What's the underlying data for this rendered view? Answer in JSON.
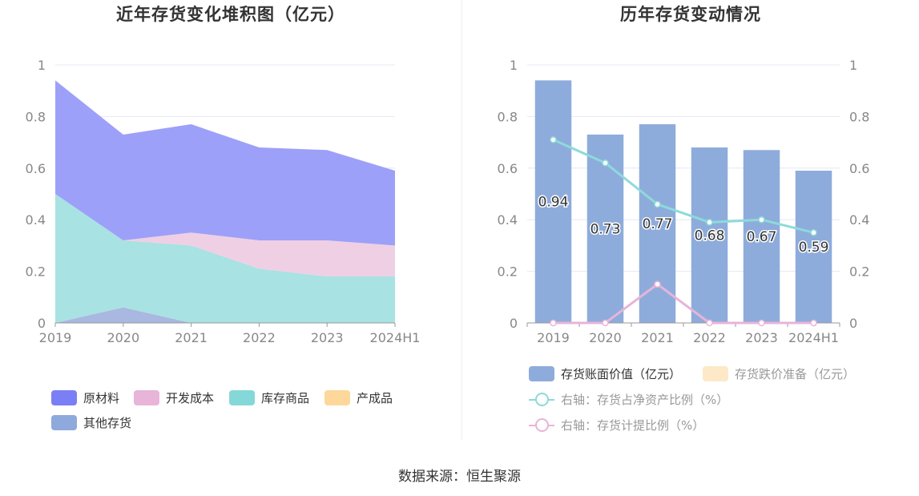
{
  "footer": {
    "source": "数据来源：恒生聚源"
  },
  "left_chart": {
    "title": "近年存货变化堆积图（亿元）",
    "legend": [
      {
        "label": "原材料",
        "color": "#7b7ff5"
      },
      {
        "label": "开发成本",
        "color": "#e8b4d8"
      },
      {
        "label": "库存商品",
        "color": "#85d8d8"
      },
      {
        "label": "产成品",
        "color": "#fdd89a"
      },
      {
        "label": "其他存货",
        "color": "#8ea9db"
      }
    ]
  },
  "right_chart": {
    "title": "历年存货变动情况",
    "legend": [
      {
        "label": "存货账面价值（亿元）",
        "color": "#8eacdb",
        "kind": "box"
      },
      {
        "label": "存货跌价准备（亿元）",
        "color": "#fde8c8",
        "kind": "box"
      },
      {
        "label": "右轴：存货占净资产比例（%）",
        "color": "#8ddada",
        "kind": "line"
      },
      {
        "label": "右轴：存货计提比例（%）",
        "color": "#e8b4d8",
        "kind": "line"
      }
    ]
  },
  "chart_data": [
    {
      "type": "area",
      "stacked": true,
      "title": "近年存货变化堆积图（亿元）",
      "categories": [
        "2019",
        "2020",
        "2021",
        "2022",
        "2023",
        "2024H1"
      ],
      "ylim": [
        0,
        1
      ],
      "yticks": [
        "0",
        "0.2",
        "0.4",
        "0.6",
        "0.8",
        "1"
      ],
      "grid": true,
      "legend_position": "bottom",
      "series": [
        {
          "name": "其他存货",
          "values": [
            0,
            0.06,
            0,
            0,
            0,
            0
          ],
          "color": "#a9b8e0"
        },
        {
          "name": "库存商品",
          "values": [
            0.5,
            0.26,
            0.3,
            0.21,
            0.18,
            0.18
          ],
          "color": "#a8e2e2"
        },
        {
          "name": "产成品",
          "values": [
            0,
            0,
            0,
            0,
            0,
            0
          ],
          "color": "#fdd89a"
        },
        {
          "name": "开发成本",
          "values": [
            0,
            0,
            0.05,
            0.11,
            0.14,
            0.12
          ],
          "color": "#efcfe4"
        },
        {
          "name": "原材料",
          "values": [
            0.44,
            0.41,
            0.42,
            0.36,
            0.35,
            0.29
          ],
          "color": "#9da0f8"
        }
      ]
    },
    {
      "type": "bar",
      "title": "历年存货变动情况",
      "categories": [
        "2019",
        "2020",
        "2021",
        "2022",
        "2023",
        "2024H1"
      ],
      "ylim": [
        0,
        1
      ],
      "y2lim": [
        0,
        1
      ],
      "yticks": [
        "0",
        "0.2",
        "0.4",
        "0.6",
        "0.8",
        "1"
      ],
      "grid": true,
      "legend_position": "bottom",
      "series": [
        {
          "name": "存货账面价值（亿元）",
          "type": "bar",
          "axis": "left",
          "values": [
            0.94,
            0.73,
            0.77,
            0.68,
            0.67,
            0.59
          ],
          "labels": [
            "0.94",
            "0.73",
            "0.77",
            "0.68",
            "0.67",
            "0.59"
          ],
          "color": "#8eacdb"
        },
        {
          "name": "存货跌价准备（亿元）",
          "type": "bar",
          "axis": "left",
          "values": [
            0,
            0,
            0,
            0,
            0,
            0
          ],
          "color": "#fde8c8"
        },
        {
          "name": "右轴：存货占净资产比例（%）",
          "type": "line",
          "axis": "right",
          "values": [
            0.71,
            0.62,
            0.46,
            0.39,
            0.4,
            0.35
          ],
          "color": "#8ddada"
        },
        {
          "name": "右轴：存货计提比例（%）",
          "type": "line",
          "axis": "right",
          "values": [
            0,
            0,
            0.15,
            0,
            0,
            0
          ],
          "color": "#e8b4d8"
        }
      ]
    }
  ]
}
